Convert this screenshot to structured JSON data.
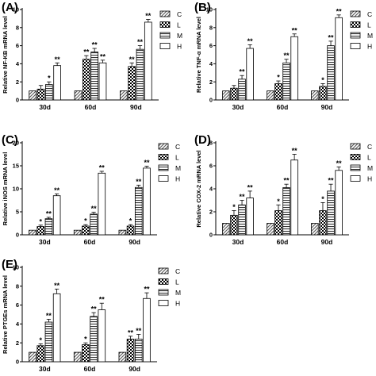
{
  "patterns": {
    "C": {
      "type": "diagonal",
      "color": "#555555"
    },
    "L": {
      "type": "checker",
      "color": "#000000"
    },
    "M": {
      "type": "horizontal",
      "color": "#333333"
    },
    "H": {
      "type": "empty",
      "color": "#ffffff"
    }
  },
  "chart_data": [
    {
      "type": "bar",
      "panel": "(A)",
      "ylabel": "Relative NF-KB mRNA level",
      "ylim": [
        0,
        10
      ],
      "yticks": [
        "0",
        "2",
        "4",
        "6",
        "8",
        "10"
      ],
      "categories": [
        "30d",
        "60d",
        "90d"
      ],
      "legend": [
        "C",
        "L",
        "M",
        "H"
      ],
      "series": [
        {
          "name": "C",
          "values": [
            1.0,
            1.0,
            1.0
          ],
          "errors": [
            0,
            0,
            0
          ],
          "sig": [
            "",
            "",
            ""
          ]
        },
        {
          "name": "L",
          "values": [
            1.2,
            4.5,
            3.7
          ],
          "errors": [
            0.4,
            0.4,
            0.4
          ],
          "sig": [
            "",
            "**",
            "**"
          ]
        },
        {
          "name": "M",
          "values": [
            1.7,
            5.3,
            5.6
          ],
          "errors": [
            0.3,
            0.4,
            0.4
          ],
          "sig": [
            "*",
            "**",
            "**"
          ]
        },
        {
          "name": "H",
          "values": [
            3.8,
            4.1,
            8.6
          ],
          "errors": [
            0.3,
            0.3,
            0.3
          ],
          "sig": [
            "**",
            "**",
            "**"
          ]
        }
      ]
    },
    {
      "type": "bar",
      "panel": "(B)",
      "ylabel": "Relative TNF-α mRNA level",
      "ylim": [
        0,
        10
      ],
      "yticks": [
        "0",
        "2",
        "4",
        "6",
        "8",
        "10"
      ],
      "categories": [
        "30d",
        "60d",
        "90d"
      ],
      "legend": [
        "C",
        "L",
        "M",
        "H"
      ],
      "series": [
        {
          "name": "C",
          "values": [
            1.0,
            1.0,
            1.0
          ],
          "errors": [
            0,
            0,
            0
          ],
          "sig": [
            "",
            "",
            ""
          ]
        },
        {
          "name": "L",
          "values": [
            1.3,
            1.8,
            1.5
          ],
          "errors": [
            0.3,
            0.3,
            0.3
          ],
          "sig": [
            "",
            "*",
            "*"
          ]
        },
        {
          "name": "M",
          "values": [
            2.3,
            4.1,
            6.0
          ],
          "errors": [
            0.4,
            0.4,
            0.5
          ],
          "sig": [
            "**",
            "**",
            "**"
          ]
        },
        {
          "name": "H",
          "values": [
            5.7,
            7.0,
            9.1
          ],
          "errors": [
            0.4,
            0.3,
            0.3
          ],
          "sig": [
            "**",
            "**",
            "**"
          ]
        }
      ]
    },
    {
      "type": "bar",
      "panel": "(C)",
      "ylabel": "Relative iNOS mRNA level",
      "ylim": [
        0,
        20
      ],
      "yticks": [
        "0",
        "5",
        "10",
        "15",
        "20"
      ],
      "categories": [
        "30d",
        "60d",
        "90d"
      ],
      "legend": [
        "C",
        "L",
        "M",
        "H"
      ],
      "series": [
        {
          "name": "C",
          "values": [
            1.0,
            1.0,
            1.0
          ],
          "errors": [
            0,
            0,
            0
          ],
          "sig": [
            "",
            "",
            ""
          ]
        },
        {
          "name": "L",
          "values": [
            1.8,
            1.9,
            1.9
          ],
          "errors": [
            0.3,
            0.3,
            0.3
          ],
          "sig": [
            "*",
            "*",
            "*"
          ]
        },
        {
          "name": "M",
          "values": [
            3.5,
            4.5,
            10.3
          ],
          "errors": [
            0.3,
            0.4,
            0.5
          ],
          "sig": [
            "**",
            "**",
            "**"
          ]
        },
        {
          "name": "H",
          "values": [
            8.5,
            13.4,
            14.5
          ],
          "errors": [
            0.4,
            0.4,
            0.4
          ],
          "sig": [
            "**",
            "**",
            "**"
          ]
        }
      ]
    },
    {
      "type": "bar",
      "panel": "(D)",
      "ylabel": "Relative COX-2 mRNA level",
      "ylim": [
        0,
        8
      ],
      "yticks": [
        "0",
        "2",
        "4",
        "6",
        "8"
      ],
      "categories": [
        "30d",
        "60d",
        "90d"
      ],
      "legend": [
        "C",
        "L",
        "M",
        "H"
      ],
      "series": [
        {
          "name": "C",
          "values": [
            1.0,
            1.0,
            1.0
          ],
          "errors": [
            0,
            0,
            0
          ],
          "sig": [
            "",
            "",
            ""
          ]
        },
        {
          "name": "L",
          "values": [
            1.7,
            2.1,
            2.1
          ],
          "errors": [
            0.4,
            0.5,
            0.7
          ],
          "sig": [
            "*",
            "*",
            "*"
          ]
        },
        {
          "name": "M",
          "values": [
            2.6,
            4.1,
            3.8
          ],
          "errors": [
            0.4,
            0.3,
            0.6
          ],
          "sig": [
            "**",
            "**",
            "**"
          ]
        },
        {
          "name": "H",
          "values": [
            3.2,
            6.5,
            5.6
          ],
          "errors": [
            0.6,
            0.5,
            0.3
          ],
          "sig": [
            "**",
            "**",
            "**"
          ]
        }
      ]
    },
    {
      "type": "bar",
      "panel": "(E)",
      "ylabel": "Relative PTGEs mRNA level",
      "ylim": [
        0,
        10
      ],
      "yticks": [
        "0",
        "2",
        "4",
        "6",
        "8",
        "10"
      ],
      "categories": [
        "30d",
        "60d",
        "90d"
      ],
      "legend": [
        "C",
        "L",
        "M",
        "H"
      ],
      "series": [
        {
          "name": "C",
          "values": [
            1.0,
            1.0,
            1.0
          ],
          "errors": [
            0,
            0,
            0
          ],
          "sig": [
            "",
            "",
            ""
          ]
        },
        {
          "name": "L",
          "values": [
            1.7,
            1.8,
            2.4
          ],
          "errors": [
            0.2,
            0.2,
            0.3
          ],
          "sig": [
            "*",
            "*",
            "**"
          ]
        },
        {
          "name": "M",
          "values": [
            4.2,
            4.8,
            2.4
          ],
          "errors": [
            0.3,
            0.4,
            0.5
          ],
          "sig": [
            "**",
            "**",
            "**"
          ]
        },
        {
          "name": "H",
          "values": [
            7.2,
            5.5,
            6.7
          ],
          "errors": [
            0.5,
            0.7,
            0.6
          ],
          "sig": [
            "**",
            "**",
            "**"
          ]
        }
      ]
    }
  ]
}
